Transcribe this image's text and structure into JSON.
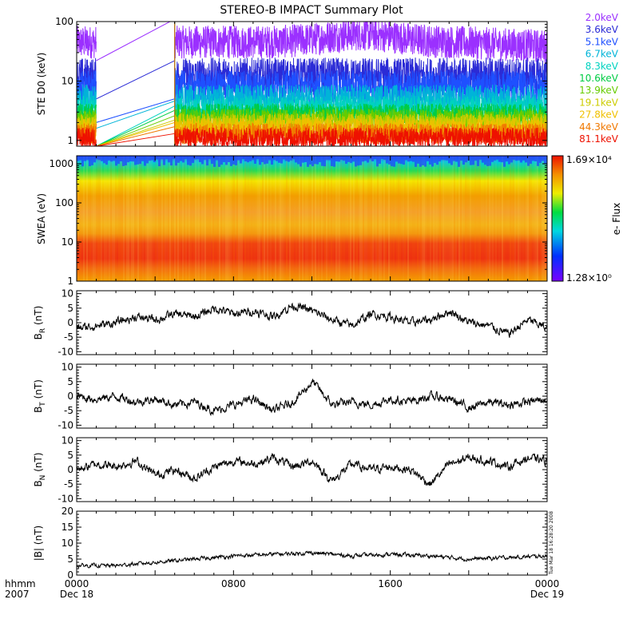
{
  "title": "STEREO-B IMPACT Summary Plot",
  "timestamp": "Tue Mar 18 16:28:20 2008",
  "x_axis": {
    "label_row1": "hhmm",
    "label_row2": "2007",
    "range_hours": [
      0,
      24
    ],
    "ticks": [
      {
        "hour": 0,
        "label": "0000",
        "sub": "Dec 18"
      },
      {
        "hour": 8,
        "label": "0800",
        "sub": ""
      },
      {
        "hour": 16,
        "label": "1600",
        "sub": ""
      },
      {
        "hour": 24,
        "label": "0000",
        "sub": "Dec 19"
      }
    ]
  },
  "chart_data": [
    {
      "type": "line",
      "panel": "ste",
      "ylabel": "STE D0 (keV)",
      "yscale": "log",
      "ylim": [
        0.8,
        100
      ],
      "yticks": [
        1,
        10,
        100
      ],
      "data_gap_hours": [
        1,
        5
      ],
      "series": [
        {
          "name": "2.0keV",
          "color": "#9b30ff",
          "level": 45,
          "noise": 0.4,
          "gap": [
            22,
            110
          ]
        },
        {
          "name": "3.6keV",
          "color": "#2b2bd6",
          "level": 12,
          "noise": 0.45,
          "gap": [
            5,
            22
          ]
        },
        {
          "name": "5.1keV",
          "color": "#1e50ff",
          "level": 8,
          "noise": 0.4,
          "gap": [
            2,
            5
          ]
        },
        {
          "name": "6.7keV",
          "color": "#00b4d8",
          "level": 5,
          "noise": 0.35,
          "gap": [
            1.6,
            4.6
          ]
        },
        {
          "name": "8.3keV",
          "color": "#00d2c0",
          "level": 3.5,
          "noise": 0.3,
          "gap": [
            0.8,
            3.8
          ]
        },
        {
          "name": "10.6keV",
          "color": "#00cc44",
          "level": 2.8,
          "noise": 0.25,
          "gap": [
            0.8,
            3.2
          ]
        },
        {
          "name": "13.9keV",
          "color": "#66cc00",
          "level": 2.3,
          "noise": 0.25,
          "gap": [
            0.8,
            2.6
          ]
        },
        {
          "name": "19.1keV",
          "color": "#cccc00",
          "level": 1.9,
          "noise": 0.25,
          "gap": [
            0.8,
            2.2
          ]
        },
        {
          "name": "27.8keV",
          "color": "#f0c000",
          "level": 1.6,
          "noise": 0.25,
          "gap": [
            0.8,
            2.0
          ]
        },
        {
          "name": "44.3keV",
          "color": "#f07800",
          "level": 1.3,
          "noise": 0.25,
          "gap": [
            0.8,
            1.7
          ]
        },
        {
          "name": "81.1keV",
          "color": "#ee1100",
          "level": 1.1,
          "noise": 0.25,
          "gap": [
            0.8,
            1.3
          ]
        }
      ]
    },
    {
      "type": "heatmap",
      "panel": "swea",
      "ylabel": "SWEA (eV)",
      "yscale": "log",
      "ylim": [
        1,
        1600
      ],
      "yticks": [
        1,
        10,
        100,
        1000
      ],
      "colorbar": {
        "label": "e- Flux",
        "max": "1.69×10⁴",
        "min": "1.28×10⁰"
      }
    },
    {
      "type": "line",
      "panel": "br",
      "ylabel_main": "B",
      "ylabel_sub": "R",
      "ylabel_unit": " (nT)",
      "ylim": [
        -11,
        11
      ],
      "yticks": [
        -10,
        -5,
        0,
        5,
        10
      ],
      "series": [
        {
          "name": "",
          "anchors_time": [
            0,
            1,
            2,
            3,
            4,
            5,
            6,
            7,
            8,
            9,
            10,
            11,
            12,
            13,
            14,
            15,
            16,
            17,
            18,
            19,
            20,
            21,
            22,
            23,
            24
          ],
          "anchors_value": [
            -2,
            -1,
            0,
            2,
            1,
            3,
            2,
            5,
            3,
            4,
            2,
            6,
            4,
            1,
            -1,
            3,
            2,
            0,
            1,
            4,
            0,
            -1,
            -4,
            1,
            -2
          ]
        }
      ]
    },
    {
      "type": "line",
      "panel": "bt",
      "ylabel_main": "B",
      "ylabel_sub": "T",
      "ylabel_unit": " (nT)",
      "ylim": [
        -11,
        11
      ],
      "yticks": [
        -10,
        -5,
        0,
        5,
        10
      ],
      "series": [
        {
          "name": "",
          "anchors_time": [
            0,
            1,
            2,
            3,
            4,
            5,
            6,
            7,
            8,
            9,
            10,
            11,
            12,
            13,
            14,
            15,
            16,
            17,
            18,
            19,
            20,
            21,
            22,
            23,
            24
          ],
          "anchors_value": [
            0,
            -1,
            0,
            -2,
            -1,
            -3,
            -2,
            -5,
            -3,
            -1,
            -5,
            -2,
            5,
            -3,
            -2,
            -3,
            -1,
            -2,
            0,
            -1,
            -4,
            -2,
            -3,
            -2,
            -1
          ]
        }
      ]
    },
    {
      "type": "line",
      "panel": "bn",
      "ylabel_main": "B",
      "ylabel_sub": "N",
      "ylabel_unit": " (nT)",
      "ylim": [
        -11,
        11
      ],
      "yticks": [
        -10,
        -5,
        0,
        5,
        10
      ],
      "series": [
        {
          "name": "",
          "anchors_time": [
            0,
            1,
            2,
            3,
            4,
            5,
            6,
            7,
            8,
            9,
            10,
            11,
            12,
            13,
            14,
            15,
            16,
            17,
            18,
            19,
            20,
            21,
            22,
            23,
            24
          ],
          "anchors_value": [
            0,
            2,
            1,
            3,
            -2,
            0,
            -3,
            1,
            3,
            2,
            4,
            1,
            3,
            -4,
            2,
            0,
            1,
            0,
            -5,
            2,
            4,
            3,
            1,
            4,
            3
          ]
        }
      ]
    },
    {
      "type": "line",
      "panel": "bmag",
      "ylabel": "|B| (nT)",
      "ylim": [
        0,
        20
      ],
      "yticks": [
        0,
        5,
        10,
        15,
        20
      ],
      "series": [
        {
          "name": "",
          "anchors_time": [
            0,
            2,
            4,
            6,
            8,
            10,
            12,
            14,
            16,
            18,
            20,
            22,
            24
          ],
          "anchors_value": [
            3,
            3,
            4,
            5,
            6,
            6.5,
            7,
            6,
            6.5,
            6,
            5,
            5.5,
            6
          ]
        }
      ]
    }
  ]
}
